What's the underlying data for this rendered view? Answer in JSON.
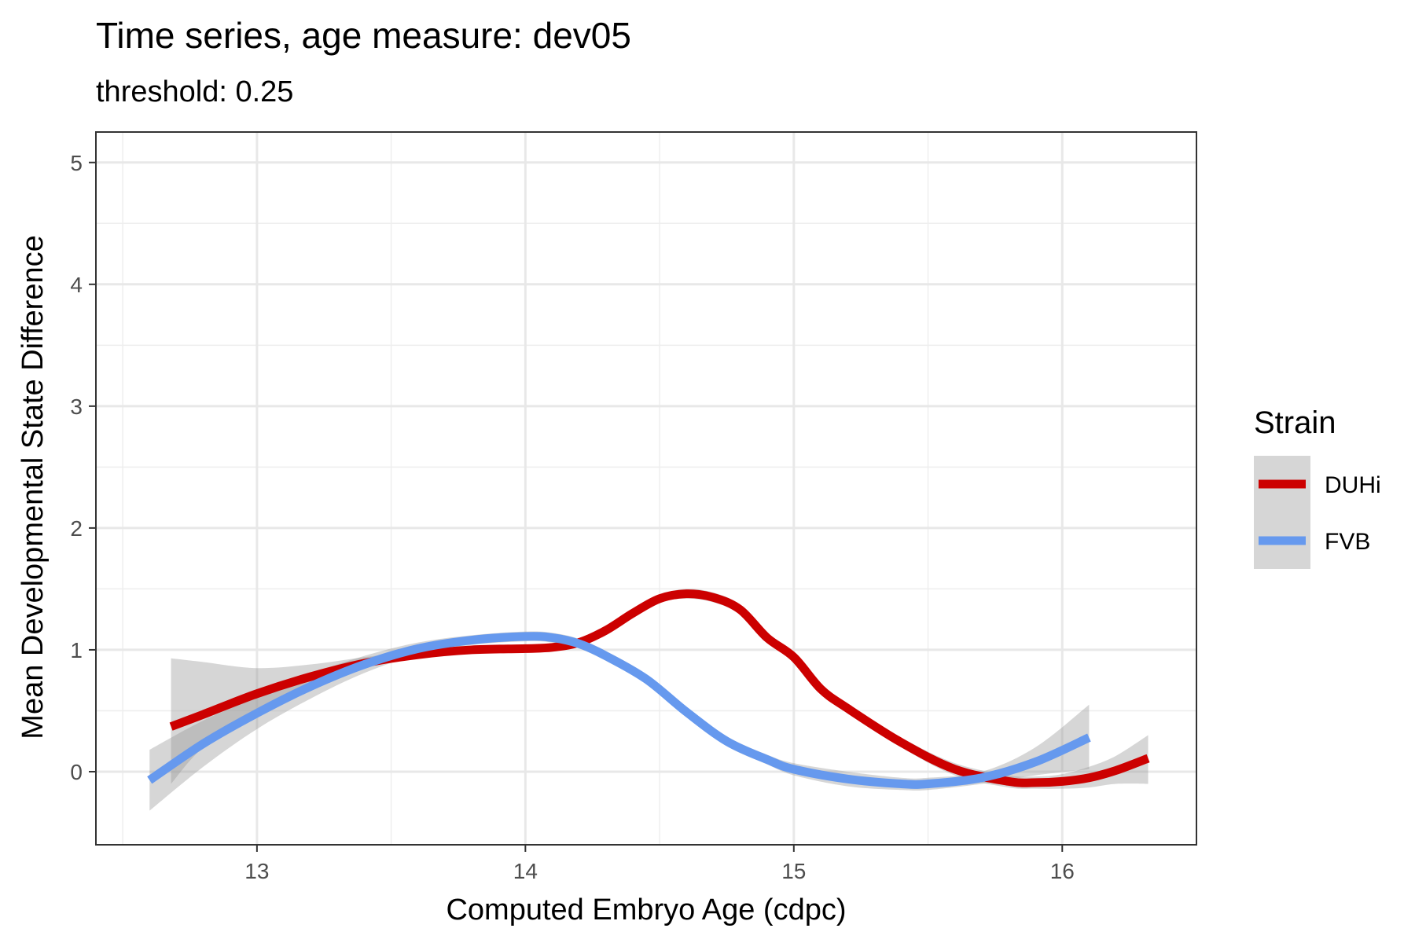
{
  "chart_data": {
    "type": "line",
    "title": "Time series, age measure: dev05",
    "subtitle": "threshold: 0.25",
    "xlabel": "Computed Embryo Age (cdpc)",
    "ylabel": "Mean Developmental State Difference",
    "xlim": [
      12.4,
      16.5
    ],
    "ylim": [
      -0.6,
      5.25
    ],
    "xticks": [
      13,
      14,
      15,
      16
    ],
    "yticks": [
      0,
      1,
      2,
      3,
      4,
      5
    ],
    "xtick_labels": [
      "13",
      "14",
      "15",
      "16"
    ],
    "ytick_labels": [
      "0",
      "1",
      "2",
      "3",
      "4",
      "5"
    ],
    "grid": true,
    "legend": {
      "title": "Strain",
      "position": "right"
    },
    "series": [
      {
        "name": "DUHi",
        "color": "#cc0000",
        "x": [
          12.68,
          12.8,
          13.0,
          13.2,
          13.4,
          13.6,
          13.8,
          14.0,
          14.1,
          14.2,
          14.3,
          14.4,
          14.5,
          14.6,
          14.7,
          14.8,
          14.9,
          15.0,
          15.1,
          15.2,
          15.4,
          15.6,
          15.8,
          15.9,
          16.0,
          16.1,
          16.2,
          16.32
        ],
        "y": [
          0.37,
          0.47,
          0.64,
          0.78,
          0.89,
          0.96,
          1.0,
          1.01,
          1.02,
          1.06,
          1.16,
          1.3,
          1.42,
          1.46,
          1.43,
          1.33,
          1.1,
          0.94,
          0.68,
          0.52,
          0.24,
          0.02,
          -0.08,
          -0.09,
          -0.08,
          -0.05,
          0.01,
          0.11
        ],
        "ci_lower": [
          -0.1,
          0.2,
          0.5,
          0.72,
          0.86,
          0.93,
          0.97,
          0.98,
          0.99,
          1.03,
          1.13,
          1.27,
          1.39,
          1.42,
          1.39,
          1.29,
          1.06,
          0.9,
          0.64,
          0.48,
          0.2,
          -0.03,
          -0.13,
          -0.14,
          -0.14,
          -0.13,
          -0.1,
          -0.1
        ],
        "ci_upper": [
          0.93,
          0.9,
          0.85,
          0.88,
          0.94,
          0.99,
          1.03,
          1.04,
          1.05,
          1.09,
          1.19,
          1.33,
          1.45,
          1.5,
          1.47,
          1.37,
          1.14,
          0.98,
          0.72,
          0.56,
          0.28,
          0.07,
          -0.03,
          -0.04,
          -0.02,
          0.04,
          0.13,
          0.3
        ]
      },
      {
        "name": "FVB",
        "color": "#6699ee",
        "x": [
          12.6,
          12.8,
          13.0,
          13.2,
          13.4,
          13.6,
          13.8,
          14.0,
          14.1,
          14.2,
          14.3,
          14.45,
          14.6,
          14.75,
          14.9,
          15.0,
          15.2,
          15.4,
          15.5,
          15.7,
          15.9,
          16.1
        ],
        "y": [
          -0.07,
          0.23,
          0.48,
          0.7,
          0.88,
          1.01,
          1.08,
          1.11,
          1.1,
          1.05,
          0.95,
          0.76,
          0.49,
          0.25,
          0.1,
          0.02,
          -0.06,
          -0.1,
          -0.1,
          -0.05,
          0.08,
          0.28
        ],
        "ci_lower": [
          -0.32,
          0.04,
          0.35,
          0.6,
          0.81,
          0.96,
          1.04,
          1.07,
          1.06,
          1.01,
          0.91,
          0.72,
          0.45,
          0.21,
          0.06,
          -0.03,
          -0.12,
          -0.15,
          -0.15,
          -0.1,
          -0.03,
          0.02
        ],
        "ci_upper": [
          0.18,
          0.42,
          0.61,
          0.8,
          0.95,
          1.06,
          1.12,
          1.15,
          1.14,
          1.09,
          0.99,
          0.8,
          0.53,
          0.29,
          0.14,
          0.07,
          0.0,
          -0.05,
          -0.05,
          0.0,
          0.2,
          0.55
        ]
      }
    ]
  }
}
